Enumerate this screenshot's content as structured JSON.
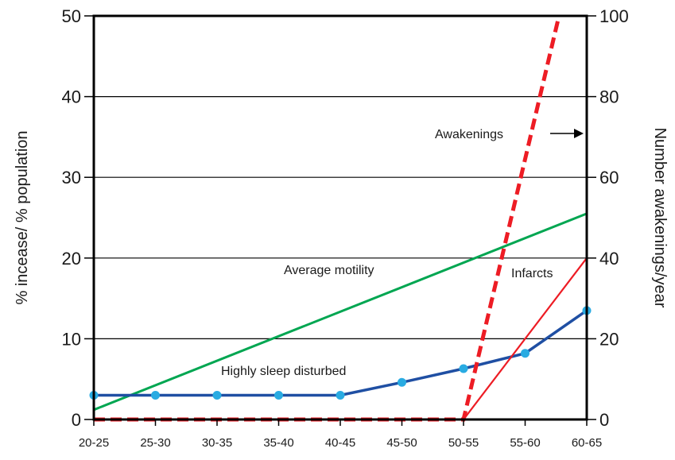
{
  "chart_data": {
    "type": "line",
    "categories": [
      "20-25",
      "25-30",
      "30-35",
      "35-40",
      "40-45",
      "45-50",
      "50-55",
      "55-60",
      "60-65"
    ],
    "ylabel": "% incease/  % population",
    "y2label": "Number awakenings/year",
    "ylim": [
      0,
      50
    ],
    "y2lim": [
      0,
      100
    ],
    "yticks": [
      "0",
      "10",
      "20",
      "30",
      "40",
      "50"
    ],
    "y2ticks": [
      "0",
      "20",
      "40",
      "60",
      "80",
      "100"
    ],
    "grid": true,
    "series": [
      {
        "name": "Average motility",
        "axis": "left",
        "color": "#00a651",
        "style": "solid",
        "markers": false,
        "x": [
          0,
          8
        ],
        "values": [
          1.2,
          25.5
        ]
      },
      {
        "name": "Highly sleep disturbed",
        "axis": "left",
        "color": "#1f4fa3",
        "style": "solid",
        "markers": true,
        "marker_color": "#29abe2",
        "x": [
          0,
          1,
          2,
          3,
          4,
          5,
          6,
          7,
          8
        ],
        "values": [
          3,
          3,
          3,
          3,
          3,
          4.6,
          6.3,
          8.2,
          13.5
        ]
      },
      {
        "name": "Infarcts",
        "axis": "left",
        "color": "#ed1c24",
        "style": "solid",
        "markers": false,
        "x": [
          0,
          6,
          8
        ],
        "values": [
          0,
          0,
          20
        ]
      },
      {
        "name": "Awakenings",
        "axis": "right",
        "color": "#ed1c24",
        "style": "dashed",
        "markers": false,
        "x": [
          0,
          6,
          7.55
        ],
        "values": [
          0,
          0,
          100
        ]
      }
    ],
    "annotations": [
      {
        "text": "Average motility",
        "target": "Average motility"
      },
      {
        "text": "Highly sleep disturbed",
        "target": "Highly sleep disturbed"
      },
      {
        "text": "Infarcts",
        "target": "Infarcts"
      },
      {
        "text": "Awakenings",
        "target": "Awakenings",
        "arrow": "right"
      }
    ]
  }
}
